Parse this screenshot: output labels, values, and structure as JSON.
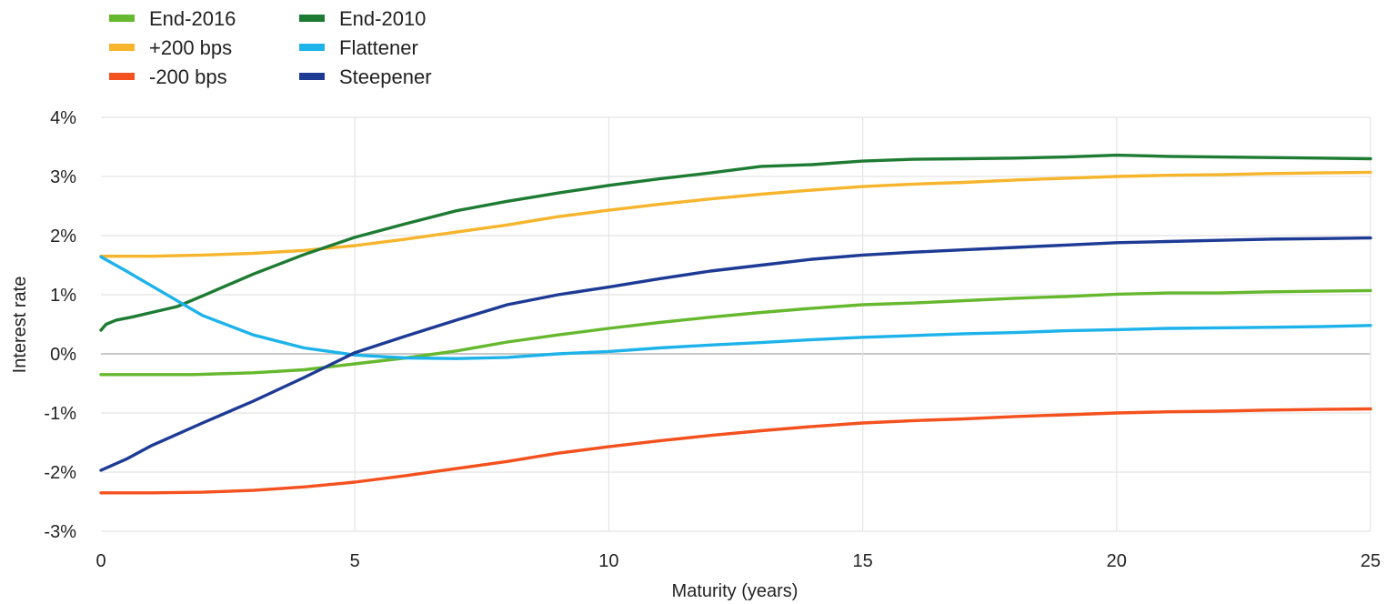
{
  "chart_data": {
    "type": "line",
    "title": "",
    "xlabel": "Maturity (years)",
    "ylabel": "Interest rate",
    "xlim": [
      0,
      25
    ],
    "ylim": [
      -3,
      4
    ],
    "x_ticks": [
      0,
      5,
      10,
      15,
      20,
      25
    ],
    "x_tick_labels": [
      "0",
      "5",
      "10",
      "15",
      "20",
      "25"
    ],
    "y_ticks": [
      -3,
      -2,
      -1,
      0,
      1,
      2,
      3,
      4
    ],
    "y_tick_labels": [
      "-3%",
      "-2%",
      "-1%",
      "0%",
      "1%",
      "2%",
      "3%",
      "4%"
    ],
    "grid": "horizontal and vertical",
    "legend_position": "top-left",
    "series": [
      {
        "name": "End-2016",
        "color": "#66b82e",
        "points": [
          [
            0,
            -0.35
          ],
          [
            1,
            -0.35
          ],
          [
            1.8,
            -0.35
          ],
          [
            3,
            -0.32
          ],
          [
            4,
            -0.27
          ],
          [
            5,
            -0.17
          ],
          [
            6,
            -0.07
          ],
          [
            7,
            0.05
          ],
          [
            8,
            0.2
          ],
          [
            9,
            0.32
          ],
          [
            10,
            0.43
          ],
          [
            11,
            0.53
          ],
          [
            12,
            0.62
          ],
          [
            13,
            0.7
          ],
          [
            14,
            0.77
          ],
          [
            15,
            0.83
          ],
          [
            16,
            0.86
          ],
          [
            17,
            0.9
          ],
          [
            18,
            0.94
          ],
          [
            19,
            0.97
          ],
          [
            20,
            1.01
          ],
          [
            21,
            1.03
          ],
          [
            22,
            1.03
          ],
          [
            23,
            1.05
          ],
          [
            24,
            1.06
          ],
          [
            25,
            1.07
          ]
        ]
      },
      {
        "name": "+200 bps",
        "color": "#f6b52c",
        "points": [
          [
            0,
            1.65
          ],
          [
            1,
            1.65
          ],
          [
            2,
            1.67
          ],
          [
            3,
            1.7
          ],
          [
            4,
            1.75
          ],
          [
            5,
            1.83
          ],
          [
            6,
            1.94
          ],
          [
            7,
            2.06
          ],
          [
            8,
            2.18
          ],
          [
            9,
            2.32
          ],
          [
            10,
            2.43
          ],
          [
            11,
            2.53
          ],
          [
            12,
            2.62
          ],
          [
            13,
            2.7
          ],
          [
            14,
            2.77
          ],
          [
            15,
            2.83
          ],
          [
            16,
            2.87
          ],
          [
            17,
            2.9
          ],
          [
            18,
            2.94
          ],
          [
            19,
            2.97
          ],
          [
            20,
            3.0
          ],
          [
            21,
            3.02
          ],
          [
            22,
            3.03
          ],
          [
            23,
            3.05
          ],
          [
            24,
            3.06
          ],
          [
            25,
            3.07
          ]
        ]
      },
      {
        "name": "-200 bps",
        "color": "#f4511e",
        "points": [
          [
            0,
            -2.35
          ],
          [
            1,
            -2.35
          ],
          [
            2,
            -2.34
          ],
          [
            3,
            -2.31
          ],
          [
            4,
            -2.25
          ],
          [
            5,
            -2.17
          ],
          [
            6,
            -2.06
          ],
          [
            7,
            -1.94
          ],
          [
            8,
            -1.82
          ],
          [
            9,
            -1.68
          ],
          [
            10,
            -1.57
          ],
          [
            11,
            -1.47
          ],
          [
            12,
            -1.38
          ],
          [
            13,
            -1.3
          ],
          [
            14,
            -1.23
          ],
          [
            15,
            -1.17
          ],
          [
            16,
            -1.13
          ],
          [
            17,
            -1.1
          ],
          [
            18,
            -1.06
          ],
          [
            19,
            -1.03
          ],
          [
            20,
            -1.0
          ],
          [
            21,
            -0.98
          ],
          [
            22,
            -0.97
          ],
          [
            23,
            -0.95
          ],
          [
            24,
            -0.94
          ],
          [
            25,
            -0.93
          ]
        ]
      },
      {
        "name": "End-2010",
        "color": "#1e7b33",
        "points": [
          [
            0,
            0.4
          ],
          [
            0.1,
            0.5
          ],
          [
            0.3,
            0.57
          ],
          [
            0.6,
            0.62
          ],
          [
            1,
            0.7
          ],
          [
            1.5,
            0.8
          ],
          [
            2,
            0.98
          ],
          [
            3,
            1.35
          ],
          [
            4,
            1.68
          ],
          [
            5,
            1.97
          ],
          [
            6,
            2.2
          ],
          [
            7,
            2.42
          ],
          [
            8,
            2.58
          ],
          [
            9,
            2.72
          ],
          [
            10,
            2.85
          ],
          [
            11,
            2.96
          ],
          [
            12,
            3.06
          ],
          [
            13,
            3.17
          ],
          [
            14,
            3.2
          ],
          [
            15,
            3.26
          ],
          [
            16,
            3.29
          ],
          [
            17,
            3.3
          ],
          [
            18,
            3.31
          ],
          [
            19,
            3.33
          ],
          [
            20,
            3.36
          ],
          [
            21,
            3.34
          ],
          [
            22,
            3.33
          ],
          [
            23,
            3.32
          ],
          [
            24,
            3.31
          ],
          [
            25,
            3.3
          ]
        ]
      },
      {
        "name": "Flattener",
        "color": "#1db3ea",
        "points": [
          [
            0,
            1.64
          ],
          [
            0.5,
            1.4
          ],
          [
            1,
            1.15
          ],
          [
            2,
            0.65
          ],
          [
            3,
            0.32
          ],
          [
            4,
            0.1
          ],
          [
            5,
            -0.02
          ],
          [
            6,
            -0.07
          ],
          [
            7,
            -0.08
          ],
          [
            8,
            -0.06
          ],
          [
            9,
            0.0
          ],
          [
            10,
            0.04
          ],
          [
            11,
            0.1
          ],
          [
            12,
            0.15
          ],
          [
            13,
            0.19
          ],
          [
            14,
            0.24
          ],
          [
            15,
            0.28
          ],
          [
            16,
            0.31
          ],
          [
            17,
            0.34
          ],
          [
            18,
            0.36
          ],
          [
            19,
            0.39
          ],
          [
            20,
            0.41
          ],
          [
            21,
            0.43
          ],
          [
            22,
            0.44
          ],
          [
            23,
            0.45
          ],
          [
            24,
            0.46
          ],
          [
            25,
            0.48
          ]
        ]
      },
      {
        "name": "Steepener",
        "color": "#1d3a94",
        "points": [
          [
            0,
            -1.97
          ],
          [
            0.5,
            -1.78
          ],
          [
            1,
            -1.55
          ],
          [
            2,
            -1.17
          ],
          [
            3,
            -0.8
          ],
          [
            4,
            -0.4
          ],
          [
            5,
            0.02
          ],
          [
            6,
            0.3
          ],
          [
            7,
            0.57
          ],
          [
            8,
            0.83
          ],
          [
            9,
            1.0
          ],
          [
            10,
            1.13
          ],
          [
            11,
            1.27
          ],
          [
            12,
            1.4
          ],
          [
            13,
            1.5
          ],
          [
            14,
            1.6
          ],
          [
            15,
            1.67
          ],
          [
            16,
            1.72
          ],
          [
            17,
            1.76
          ],
          [
            18,
            1.8
          ],
          [
            19,
            1.84
          ],
          [
            20,
            1.88
          ],
          [
            21,
            1.9
          ],
          [
            22,
            1.92
          ],
          [
            23,
            1.94
          ],
          [
            24,
            1.95
          ],
          [
            25,
            1.96
          ]
        ]
      }
    ]
  }
}
